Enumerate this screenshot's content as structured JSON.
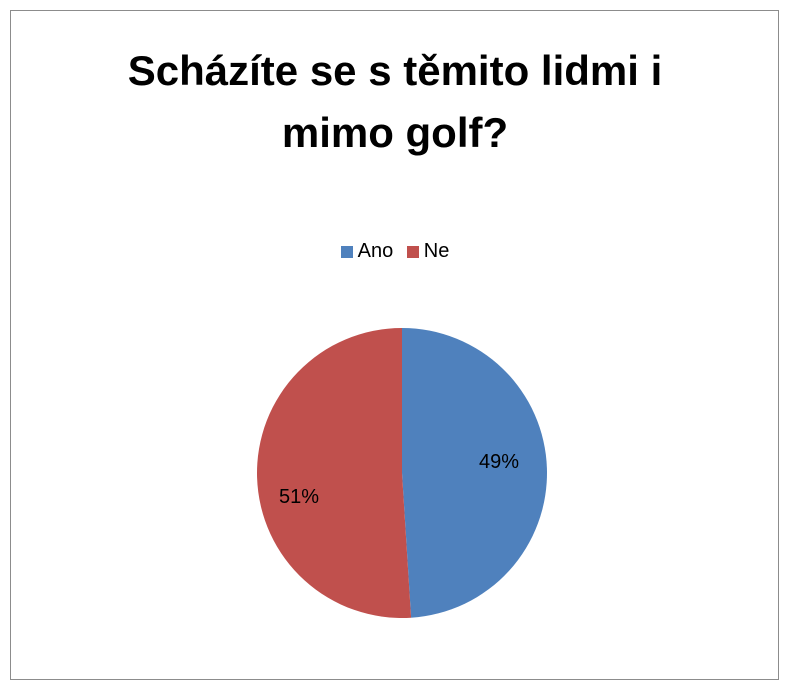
{
  "chart_data": {
    "type": "pie",
    "title": "Scházíte se s těmito lidmi i mimo golf?",
    "categories": [
      "Ano",
      "Ne"
    ],
    "values": [
      49,
      51
    ],
    "data_labels": [
      "49%",
      "51%"
    ],
    "colors": [
      "#4f81bd",
      "#c0504d"
    ],
    "legend_position": "top"
  }
}
